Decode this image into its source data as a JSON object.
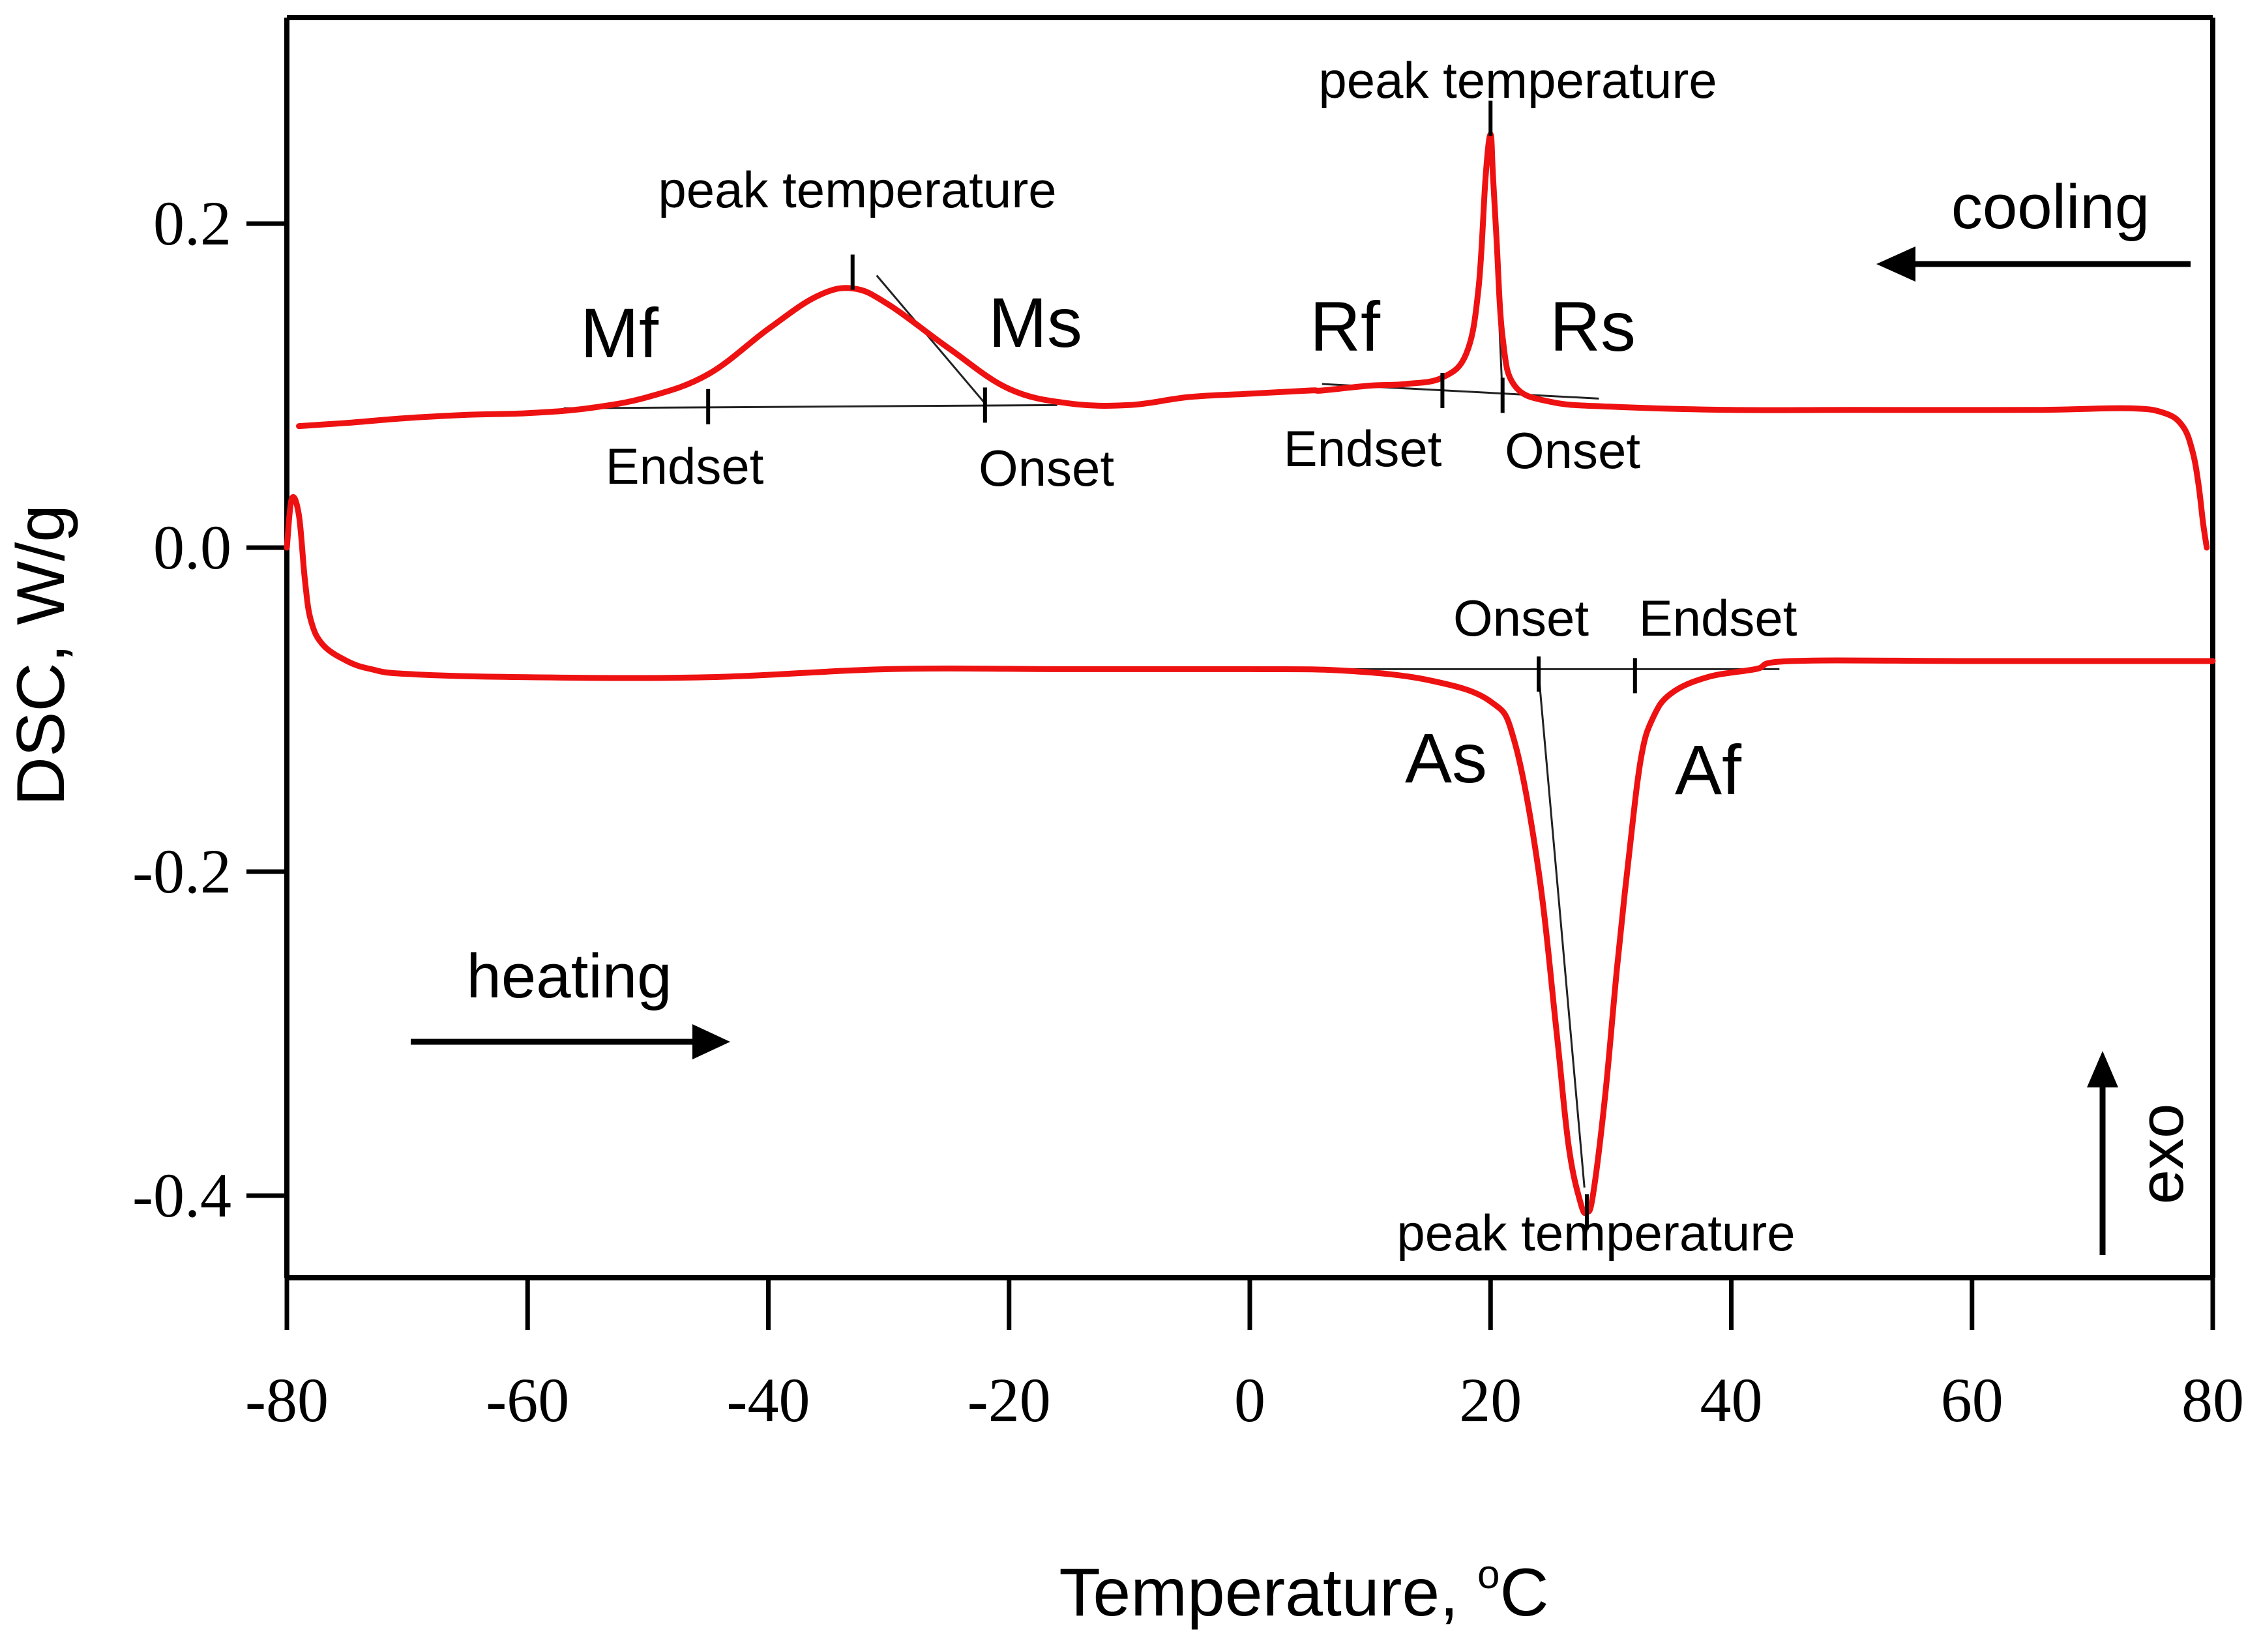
{
  "chart_data": {
    "type": "line",
    "xlabel": "Temperature, °C",
    "xlabel_main": "Temperature, ",
    "xlabel_deg": "o",
    "xlabel_unit": "C",
    "ylabel": "DSC, W/g",
    "xlim": [
      -80,
      80
    ],
    "ylim": [
      -0.45,
      0.33
    ],
    "xticks": [
      -80,
      -60,
      -40,
      -20,
      0,
      20,
      40,
      60,
      80
    ],
    "xtick_labels": [
      "-80",
      "-60",
      "-40",
      "-20",
      "0",
      "20",
      "40",
      "60",
      "80"
    ],
    "yticks": [
      -0.4,
      -0.2,
      0.0,
      0.2
    ],
    "ytick_labels": [
      "-0.4",
      "-0.2",
      "0.0",
      "0.2"
    ],
    "series": [
      {
        "name": "cooling",
        "x": [
          79.5,
          79.2,
          78.8,
          78.3,
          77.5,
          76,
          73,
          65,
          50,
          40,
          30,
          25,
          22,
          21,
          20.5,
          20.2,
          20,
          19.6,
          19,
          18,
          16,
          13,
          10,
          6,
          5,
          0,
          -5,
          -10,
          -15,
          -20,
          -25,
          -30,
          -33,
          -36,
          -40,
          -45,
          -50,
          -55,
          -60,
          -65,
          -70,
          -75,
          -79
        ],
        "y": [
          0.0,
          0.015,
          0.04,
          0.06,
          0.075,
          0.083,
          0.086,
          0.085,
          0.085,
          0.085,
          0.087,
          0.09,
          0.1,
          0.13,
          0.19,
          0.23,
          0.255,
          0.23,
          0.16,
          0.12,
          0.105,
          0.101,
          0.1,
          0.097,
          0.097,
          0.095,
          0.093,
          0.088,
          0.089,
          0.098,
          0.123,
          0.15,
          0.16,
          0.155,
          0.135,
          0.107,
          0.093,
          0.086,
          0.083,
          0.082,
          0.08,
          0.077,
          0.075
        ]
      },
      {
        "name": "heating",
        "x": [
          -80,
          -79.6,
          -79,
          -78.5,
          -78,
          -77,
          -75,
          -73,
          -70,
          -60,
          -45,
          -30,
          -15,
          0,
          8,
          15,
          20,
          22,
          24,
          25.5,
          26.5,
          27.5,
          28,
          28.5,
          29.5,
          30.5,
          31.5,
          32.5,
          33.5,
          35,
          38,
          42,
          45,
          60,
          80
        ],
        "y": [
          0.0,
          0.03,
          0.02,
          -0.02,
          -0.045,
          -0.06,
          -0.07,
          -0.075,
          -0.078,
          -0.08,
          -0.08,
          -0.075,
          -0.075,
          -0.075,
          -0.076,
          -0.082,
          -0.095,
          -0.12,
          -0.2,
          -0.3,
          -0.37,
          -0.405,
          -0.41,
          -0.4,
          -0.34,
          -0.26,
          -0.19,
          -0.13,
          -0.105,
          -0.09,
          -0.08,
          -0.075,
          -0.07,
          -0.07,
          -0.07
        ]
      }
    ],
    "baselines": [
      {
        "name": "cooling-martensite-baseline",
        "x": [
          -57,
          -16
        ],
        "y": [
          0.086,
          0.088
        ]
      },
      {
        "name": "cooling-rphase-baseline",
        "x": [
          6,
          29
        ],
        "y": [
          0.101,
          0.092
        ]
      },
      {
        "name": "heating-baseline",
        "x": [
          8,
          44
        ],
        "y": [
          -0.075,
          -0.075
        ]
      }
    ],
    "tangents": [
      {
        "name": "ms-tangent",
        "x": [
          -31,
          -22
        ],
        "y": [
          0.168,
          0.089
        ]
      },
      {
        "name": "rs-tangent",
        "x": [
          20,
          21
        ],
        "y": [
          0.263,
          0.092
        ]
      },
      {
        "name": "as-tangent",
        "x": [
          24,
          27.8
        ],
        "y": [
          -0.078,
          -0.395
        ]
      }
    ],
    "markers": [
      {
        "name": "mf-endset-marker",
        "x": -45,
        "y": 0.087
      },
      {
        "name": "ms-onset-marker",
        "x": -22,
        "y": 0.088
      },
      {
        "name": "rf-endset-marker",
        "x": 16,
        "y": 0.097
      },
      {
        "name": "rs-onset-marker",
        "x": 21,
        "y": 0.094
      },
      {
        "name": "as-onset-marker",
        "x": 24,
        "y": -0.078
      },
      {
        "name": "af-endset-marker",
        "x": 32,
        "y": -0.079
      },
      {
        "name": "martensite-peak-marker",
        "x": -33,
        "y": 0.17
      },
      {
        "name": "rphase-peak-marker",
        "x": 20,
        "y": 0.265
      },
      {
        "name": "austenite-peak-marker",
        "x": 28,
        "y": -0.41
      }
    ],
    "annotations": {
      "peak_cooling_1": "peak temperature",
      "peak_cooling_2": "peak temperature",
      "peak_heating": "peak temperature",
      "mf": "Mf",
      "ms": "Ms",
      "rf": "Rf",
      "rs": "Rs",
      "as": "As",
      "af": "Af",
      "endset_1": "Endset",
      "onset_1": "Onset",
      "endset_2": "Endset",
      "onset_2": "Onset",
      "onset_3": "Onset",
      "endset_3": "Endset",
      "cooling": "cooling",
      "heating": "heating",
      "exo": "exo"
    },
    "line_color": "#ee1111"
  }
}
